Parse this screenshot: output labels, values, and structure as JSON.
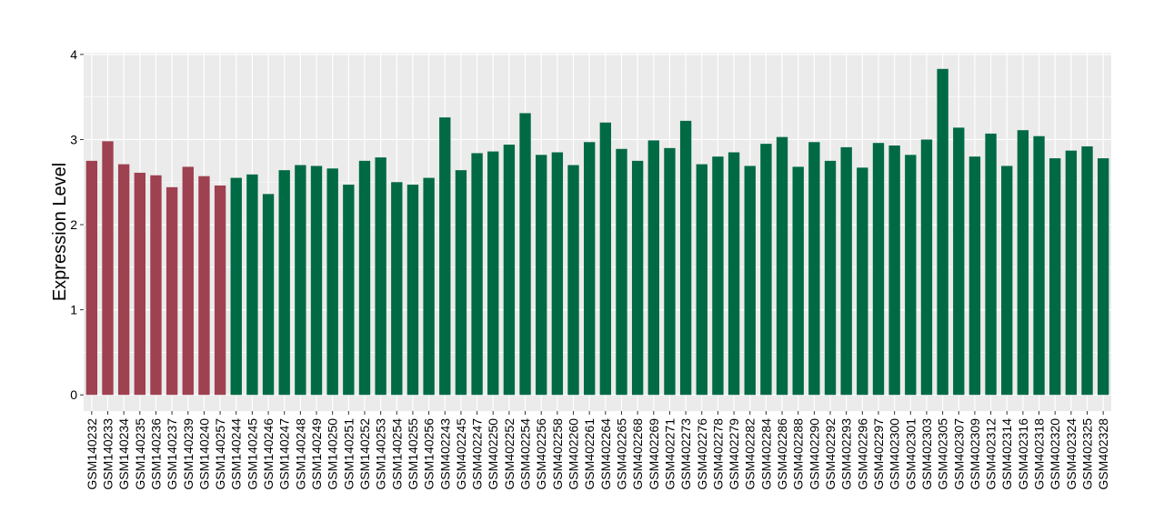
{
  "chart_data": {
    "type": "bar",
    "title": "",
    "xlabel": "",
    "ylabel": "Expression Level",
    "ylim": [
      -0.19,
      4.02
    ],
    "yticks": [
      0,
      1,
      2,
      3,
      4
    ],
    "grid": true,
    "legend": "none",
    "colors": {
      "group1": "#9E4150",
      "group2": "#006A44",
      "panel": "#EBEBEB",
      "grid": "#FFFFFF"
    },
    "categories": [
      "GSM140232",
      "GSM140233",
      "GSM140234",
      "GSM140235",
      "GSM140236",
      "GSM140237",
      "GSM140239",
      "GSM140240",
      "GSM140257",
      "GSM140244",
      "GSM140245",
      "GSM140246",
      "GSM140247",
      "GSM140248",
      "GSM140249",
      "GSM140250",
      "GSM140251",
      "GSM140252",
      "GSM140253",
      "GSM140254",
      "GSM140255",
      "GSM140256",
      "GSM402243",
      "GSM402245",
      "GSM402247",
      "GSM402250",
      "GSM402252",
      "GSM402254",
      "GSM402256",
      "GSM402258",
      "GSM402260",
      "GSM402261",
      "GSM402264",
      "GSM402265",
      "GSM402268",
      "GSM402269",
      "GSM402271",
      "GSM402273",
      "GSM402276",
      "GSM402278",
      "GSM402279",
      "GSM402282",
      "GSM402284",
      "GSM402286",
      "GSM402288",
      "GSM402290",
      "GSM402292",
      "GSM402293",
      "GSM402296",
      "GSM402297",
      "GSM402300",
      "GSM402301",
      "GSM402303",
      "GSM402305",
      "GSM402307",
      "GSM402309",
      "GSM402312",
      "GSM402314",
      "GSM402316",
      "GSM402318",
      "GSM402320",
      "GSM402324",
      "GSM402325",
      "GSM402328"
    ],
    "values": [
      2.75,
      2.98,
      2.71,
      2.61,
      2.58,
      2.44,
      2.68,
      2.57,
      2.46,
      2.55,
      2.59,
      2.36,
      2.64,
      2.7,
      2.69,
      2.66,
      2.47,
      2.75,
      2.79,
      2.5,
      2.47,
      2.55,
      3.26,
      2.64,
      2.84,
      2.86,
      2.94,
      3.31,
      2.82,
      2.85,
      2.7,
      2.97,
      3.2,
      2.89,
      2.75,
      2.99,
      2.9,
      3.22,
      2.71,
      2.8,
      2.85,
      2.69,
      2.95,
      3.03,
      2.68,
      2.97,
      2.75,
      2.91,
      2.67,
      2.96,
      2.93,
      2.82,
      3.0,
      3.83,
      3.14,
      2.8,
      3.07,
      2.69,
      3.11,
      3.04,
      2.78,
      2.87,
      2.92,
      2.78
    ],
    "groups": [
      "group1",
      "group1",
      "group1",
      "group1",
      "group1",
      "group1",
      "group1",
      "group1",
      "group1",
      "group2",
      "group2",
      "group2",
      "group2",
      "group2",
      "group2",
      "group2",
      "group2",
      "group2",
      "group2",
      "group2",
      "group2",
      "group2",
      "group2",
      "group2",
      "group2",
      "group2",
      "group2",
      "group2",
      "group2",
      "group2",
      "group2",
      "group2",
      "group2",
      "group2",
      "group2",
      "group2",
      "group2",
      "group2",
      "group2",
      "group2",
      "group2",
      "group2",
      "group2",
      "group2",
      "group2",
      "group2",
      "group2",
      "group2",
      "group2",
      "group2",
      "group2",
      "group2",
      "group2",
      "group2",
      "group2",
      "group2",
      "group2",
      "group2",
      "group2",
      "group2",
      "group2",
      "group2",
      "group2",
      "group2"
    ]
  }
}
